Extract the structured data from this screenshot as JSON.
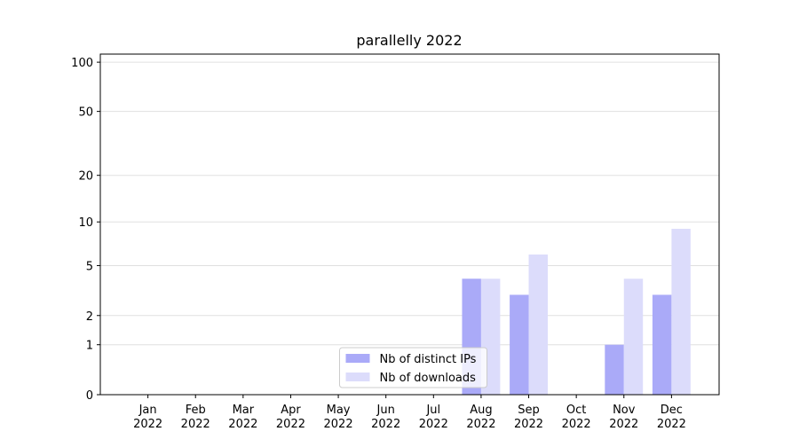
{
  "chart_data": {
    "type": "bar",
    "title": "parallelly 2022",
    "categories": [
      "Jan\n2022",
      "Feb\n2022",
      "Mar\n2022",
      "Apr\n2022",
      "May\n2022",
      "Jun\n2022",
      "Jul\n2022",
      "Aug\n2022",
      "Sep\n2022",
      "Oct\n2022",
      "Nov\n2022",
      "Dec\n2022"
    ],
    "series": [
      {
        "name": "Nb of distinct IPs",
        "color": "#aaaaf8",
        "values": [
          0,
          0,
          0,
          0,
          0,
          0,
          0,
          4,
          3,
          0,
          1,
          3
        ]
      },
      {
        "name": "Nb of downloads",
        "color": "#dcdcfb",
        "values": [
          0,
          0,
          0,
          0,
          0,
          0,
          0,
          4,
          6,
          0,
          4,
          9
        ]
      }
    ],
    "yscale": "log1p",
    "ylim": [
      0,
      112
    ],
    "yticks": [
      0,
      1,
      2,
      5,
      10,
      20,
      50,
      100
    ],
    "grid": true,
    "legend": "lower center"
  }
}
